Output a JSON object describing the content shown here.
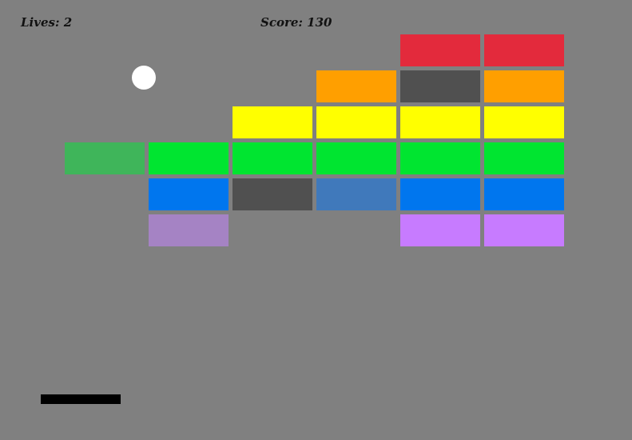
{
  "hud": {
    "lives_label": "Lives: 2",
    "score_label": "Score: 130"
  },
  "colors": {
    "background": "#808080",
    "ball": "#ffffff",
    "paddle": "#000000",
    "red": "#e32a3c",
    "orange": "#ff9f00",
    "yellow": "#ffff00",
    "green": "#00e530",
    "faded_green": "#3fb55a",
    "blue": "#0076ee",
    "faded_blue": "#4079bb",
    "purple": "#c77bff",
    "faded_purple": "#a583c4",
    "damaged_gray": "#505050"
  },
  "bricks": [
    {
      "row": 0,
      "col": 4,
      "color": "red"
    },
    {
      "row": 0,
      "col": 5,
      "color": "red"
    },
    {
      "row": 1,
      "col": 3,
      "color": "orange"
    },
    {
      "row": 1,
      "col": 4,
      "color": "damaged_gray"
    },
    {
      "row": 1,
      "col": 5,
      "color": "orange"
    },
    {
      "row": 2,
      "col": 2,
      "color": "yellow"
    },
    {
      "row": 2,
      "col": 3,
      "color": "yellow"
    },
    {
      "row": 2,
      "col": 4,
      "color": "yellow"
    },
    {
      "row": 2,
      "col": 5,
      "color": "yellow"
    },
    {
      "row": 3,
      "col": 0,
      "color": "faded_green"
    },
    {
      "row": 3,
      "col": 1,
      "color": "green"
    },
    {
      "row": 3,
      "col": 2,
      "color": "green"
    },
    {
      "row": 3,
      "col": 3,
      "color": "green"
    },
    {
      "row": 3,
      "col": 4,
      "color": "green"
    },
    {
      "row": 3,
      "col": 5,
      "color": "green"
    },
    {
      "row": 4,
      "col": 1,
      "color": "blue"
    },
    {
      "row": 4,
      "col": 2,
      "color": "damaged_gray"
    },
    {
      "row": 4,
      "col": 3,
      "color": "faded_blue"
    },
    {
      "row": 4,
      "col": 4,
      "color": "blue"
    },
    {
      "row": 4,
      "col": 5,
      "color": "blue"
    },
    {
      "row": 5,
      "col": 1,
      "color": "faded_purple"
    },
    {
      "row": 5,
      "col": 4,
      "color": "purple"
    },
    {
      "row": 5,
      "col": 5,
      "color": "purple"
    }
  ]
}
